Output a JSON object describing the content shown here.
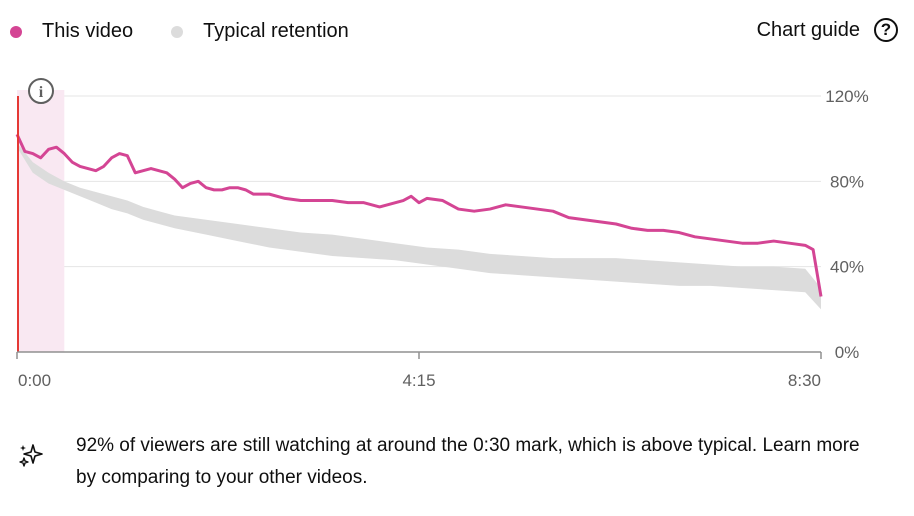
{
  "legend": {
    "this_video": "This video",
    "typical": "Typical retention"
  },
  "guide": {
    "label": "Chart guide",
    "icon": "help-circle-icon",
    "glyph": "?"
  },
  "info": {
    "icon": "info-icon",
    "glyph": "i"
  },
  "insight": {
    "icon": "sparkle-icon",
    "text": "92% of viewers are still watching at around the 0:30 mark, which is above typical. Learn more by comparing to your other videos."
  },
  "colors": {
    "this_video": "#d44594",
    "typical_band": "#dcdcdc",
    "highlight": "#f9e8f2",
    "cursor": "#e53935"
  },
  "chart_data": {
    "type": "line",
    "x_unit": "seconds",
    "xlim": [
      0,
      510
    ],
    "ylim": [
      0,
      120
    ],
    "x_ticks": [
      {
        "value": 0,
        "label": "0:00"
      },
      {
        "value": 255,
        "label": "4:15"
      },
      {
        "value": 510,
        "label": "8:30"
      }
    ],
    "y_ticks": [
      {
        "value": 0,
        "label": "0%"
      },
      {
        "value": 40,
        "label": "40%"
      },
      {
        "value": 80,
        "label": "80%"
      },
      {
        "value": 120,
        "label": "120%"
      }
    ],
    "grid": true,
    "legend_position": "top-left",
    "highlight_range": [
      0,
      30
    ],
    "series": [
      {
        "name": "This video",
        "x": [
          0,
          5,
          10,
          15,
          20,
          25,
          30,
          35,
          40,
          45,
          50,
          55,
          60,
          65,
          70,
          75,
          80,
          85,
          90,
          95,
          100,
          105,
          110,
          115,
          120,
          125,
          130,
          135,
          140,
          145,
          150,
          155,
          160,
          170,
          180,
          190,
          200,
          210,
          220,
          230,
          235,
          240,
          245,
          250,
          255,
          260,
          270,
          280,
          290,
          300,
          310,
          320,
          330,
          340,
          350,
          360,
          370,
          380,
          390,
          400,
          410,
          420,
          430,
          440,
          450,
          460,
          470,
          480,
          490,
          500,
          505,
          510
        ],
        "values": [
          102,
          94,
          93,
          91,
          95,
          96,
          93,
          89,
          87,
          86,
          85,
          87,
          91,
          93,
          92,
          84,
          85,
          86,
          85,
          84,
          81,
          77,
          79,
          80,
          77,
          76,
          76,
          77,
          77,
          76,
          74,
          74,
          74,
          72,
          71,
          71,
          71,
          70,
          70,
          68,
          69,
          70,
          71,
          73,
          70,
          72,
          71,
          67,
          66,
          67,
          69,
          68,
          67,
          66,
          63,
          62,
          61,
          60,
          58,
          57,
          57,
          56,
          54,
          53,
          52,
          51,
          51,
          52,
          51,
          50,
          48,
          26
        ]
      },
      {
        "name": "Typical retention",
        "x": [
          0,
          10,
          20,
          30,
          40,
          50,
          60,
          70,
          80,
          90,
          100,
          120,
          140,
          160,
          180,
          200,
          220,
          240,
          260,
          280,
          300,
          320,
          340,
          360,
          380,
          400,
          420,
          440,
          460,
          480,
          500,
          510
        ],
        "upper": [
          98,
          89,
          84,
          80,
          77,
          75,
          73,
          71,
          68,
          66,
          64,
          62,
          60,
          58,
          56,
          55,
          53,
          51,
          49,
          48,
          46,
          45,
          44,
          44,
          44,
          43,
          42,
          41,
          40,
          40,
          39,
          30
        ],
        "lower": [
          96,
          84,
          79,
          76,
          73,
          70,
          67,
          65,
          62,
          60,
          58,
          55,
          52,
          49,
          47,
          45,
          44,
          43,
          41,
          39,
          37,
          36,
          35,
          34,
          33,
          32,
          31,
          31,
          30,
          29,
          28,
          20
        ]
      }
    ]
  }
}
